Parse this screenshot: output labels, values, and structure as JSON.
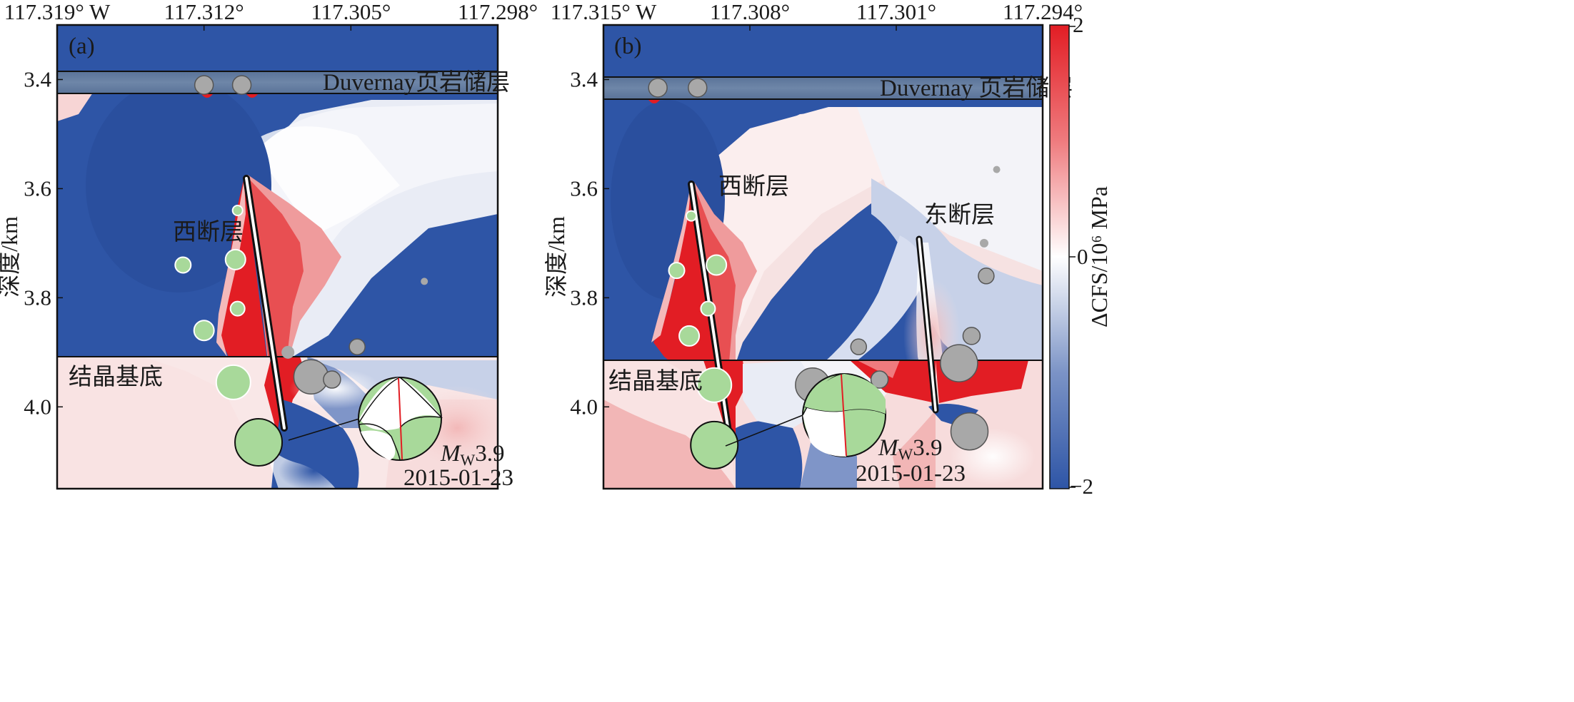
{
  "figure": {
    "y_axis_label": "深度/km",
    "colorbar_label": "ΔCFS/10⁶ MPa"
  },
  "colors": {
    "positive": "#e21d24",
    "negative": "#2e55a6",
    "neutral": "#ffffff",
    "reservoir_band": "#607898",
    "event_green": "#a8d99a",
    "event_gray": "#a8a8a8"
  },
  "colorbar": {
    "ticks": [
      "2",
      "0",
      "−2"
    ],
    "range": [
      -2,
      2
    ]
  },
  "panels": [
    {
      "id": "a",
      "label": "(a)",
      "x_ticks": [
        "117.319° W",
        "117.312°",
        "117.305°",
        "117.298°"
      ],
      "y_ticks": [
        "3.4",
        "3.6",
        "3.8",
        "4.0"
      ],
      "reservoir_label": "Duvernay页岩储层",
      "west_fault_label": "西断层",
      "basement_label": "结晶基底",
      "magnitude_prefix": "M",
      "magnitude_sub": "W",
      "magnitude_value": "3.9",
      "date": "2015-01-23"
    },
    {
      "id": "b",
      "label": "(b)",
      "x_ticks": [
        "117.315° W",
        "117.308°",
        "117.301°",
        "117.294°"
      ],
      "y_ticks": [
        "3.4",
        "3.6",
        "3.8",
        "4.0"
      ],
      "reservoir_label": "Duvernay 页岩储层",
      "west_fault_label": "西断层",
      "east_fault_label": "东断层",
      "basement_label": "结晶基底",
      "magnitude_prefix": "M",
      "magnitude_sub": "W",
      "magnitude_value": "3.9",
      "date": "2015-01-23"
    }
  ],
  "chart_data": [
    {
      "type": "heatmap",
      "panel": "a",
      "x_ticks": [
        -117.319,
        -117.312,
        -117.305,
        -117.298
      ],
      "y_ticks": [
        3.4,
        3.6,
        3.8,
        4.0
      ],
      "xlim": [
        -117.319,
        -117.298
      ],
      "ylim": [
        4.15,
        3.3
      ],
      "ylabel": "深度/km",
      "colorbar_range": [
        -2,
        2
      ],
      "layers": [
        {
          "name": "Duvernay页岩储层",
          "top_km": 3.38,
          "bottom_km": 3.425
        },
        {
          "name": "结晶基底",
          "top_km": 3.91
        }
      ],
      "faults": [
        {
          "name": "西断层",
          "top": [
            -117.3102,
            3.58
          ],
          "bottom": [
            -117.3083,
            4.04
          ]
        }
      ],
      "events_green": [
        {
          "lon": -117.3104,
          "depth": 3.64,
          "r": 7
        },
        {
          "lon": -117.313,
          "depth": 3.74,
          "r": 11
        },
        {
          "lon": -117.3105,
          "depth": 3.73,
          "r": 14
        },
        {
          "lon": -117.3104,
          "depth": 3.82,
          "r": 10
        },
        {
          "lon": -117.312,
          "depth": 3.86,
          "r": 14
        },
        {
          "lon": -117.3106,
          "depth": 3.955,
          "r": 24
        },
        {
          "lon": -117.3094,
          "depth": 4.065,
          "r": 33
        }
      ],
      "events_gray": [
        {
          "lon": -117.312,
          "depth": 3.41,
          "r": 13
        },
        {
          "lon": -117.3102,
          "depth": 3.41,
          "r": 13
        },
        {
          "lon": -117.3069,
          "depth": 3.945,
          "r": 24
        },
        {
          "lon": -117.3059,
          "depth": 3.95,
          "r": 12
        },
        {
          "lon": -117.3047,
          "depth": 3.89,
          "r": 11
        },
        {
          "lon": -117.308,
          "depth": 3.9,
          "r": 9
        },
        {
          "lon": -117.3015,
          "depth": 3.77,
          "r": 5
        }
      ],
      "focal_mechanism": {
        "magnitude": 3.9,
        "date": "2015-01-23"
      }
    },
    {
      "type": "heatmap",
      "panel": "b",
      "x_ticks": [
        -117.315,
        -117.308,
        -117.301,
        -117.294
      ],
      "y_ticks": [
        3.4,
        3.6,
        3.8,
        4.0
      ],
      "xlim": [
        -117.315,
        -117.294
      ],
      "ylim": [
        4.15,
        3.3
      ],
      "ylabel": "深度/km",
      "colorbar_range": [
        -2,
        2
      ],
      "layers": [
        {
          "name": "Duvernay 页岩储层",
          "top_km": 3.39,
          "bottom_km": 3.435
        },
        {
          "name": "结晶基底",
          "top_km": 3.915
        }
      ],
      "faults": [
        {
          "name": "西断层",
          "top": [
            -117.3108,
            3.58
          ],
          "bottom": [
            -117.3091,
            4.04
          ]
        },
        {
          "name": "东断层",
          "top": [
            -117.299,
            3.69
          ],
          "bottom": [
            -117.2981,
            4.01
          ]
        }
      ],
      "events_green": [
        {
          "lon": -117.3108,
          "depth": 3.65,
          "r": 7
        },
        {
          "lon": -117.3115,
          "depth": 3.75,
          "r": 11
        },
        {
          "lon": -117.3096,
          "depth": 3.74,
          "r": 14
        },
        {
          "lon": -117.31,
          "depth": 3.82,
          "r": 10
        },
        {
          "lon": -117.3109,
          "depth": 3.87,
          "r": 14
        },
        {
          "lon": -117.3097,
          "depth": 3.96,
          "r": 24
        },
        {
          "lon": -117.3097,
          "depth": 4.07,
          "r": 33
        }
      ],
      "events_gray": [
        {
          "lon": -117.3124,
          "depth": 3.415,
          "r": 13
        },
        {
          "lon": -117.3105,
          "depth": 3.415,
          "r": 13
        },
        {
          "lon": -117.305,
          "depth": 3.96,
          "r": 24
        },
        {
          "lon": -117.3018,
          "depth": 3.95,
          "r": 12
        },
        {
          "lon": -117.3028,
          "depth": 3.89,
          "r": 11
        },
        {
          "lon": -117.298,
          "depth": 3.92,
          "r": 26
        },
        {
          "lon": -117.2974,
          "depth": 3.87,
          "r": 12
        },
        {
          "lon": -117.2975,
          "depth": 4.045,
          "r": 26
        },
        {
          "lon": -117.2967,
          "depth": 3.76,
          "r": 11
        },
        {
          "lon": -117.2968,
          "depth": 3.7,
          "r": 6
        },
        {
          "lon": -117.2962,
          "depth": 3.565,
          "r": 5
        }
      ],
      "focal_mechanism": {
        "magnitude": 3.9,
        "date": "2015-01-23"
      }
    }
  ]
}
